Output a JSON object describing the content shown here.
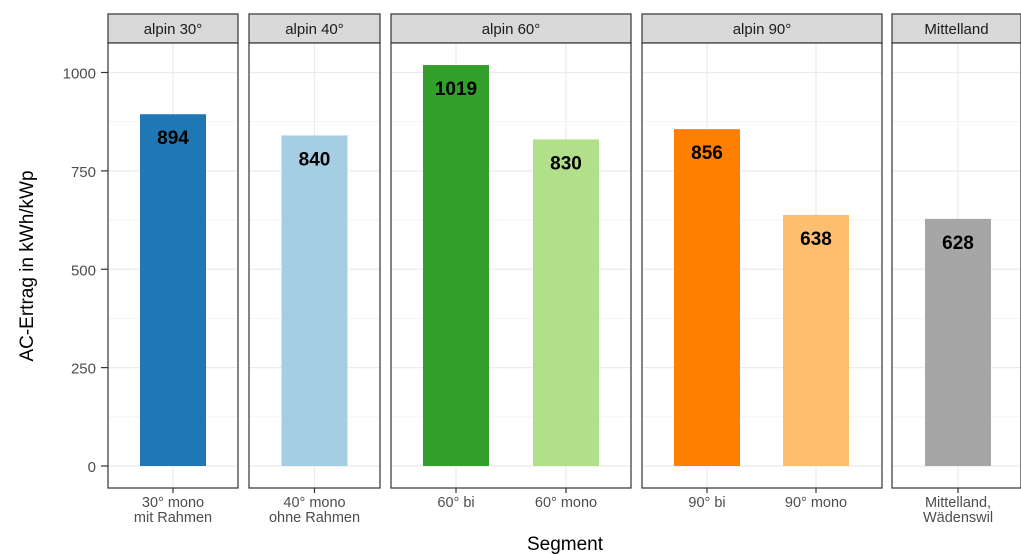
{
  "chart_data": {
    "type": "bar",
    "xlabel": "Segment",
    "ylabel": "AC-Ertrag in kWh/kWp",
    "ylim": [
      0,
      1100
    ],
    "yticks": [
      0,
      250,
      500,
      750,
      1000
    ],
    "grid": true,
    "facets": [
      {
        "title": "alpin 30°",
        "bars": [
          {
            "category": [
              "30° mono",
              "mit Rahmen"
            ],
            "value": 894,
            "label": "894",
            "color": "#1F78B4"
          }
        ]
      },
      {
        "title": "alpin 40°",
        "bars": [
          {
            "category": [
              "40° mono",
              "ohne Rahmen"
            ],
            "value": 840,
            "label": "840",
            "color": "#A6CEE3"
          }
        ]
      },
      {
        "title": "alpin 60°",
        "bars": [
          {
            "category": [
              "60° bi"
            ],
            "value": 1019,
            "label": "1019",
            "color": "#33A02C"
          },
          {
            "category": [
              "60° mono"
            ],
            "value": 830,
            "label": "830",
            "color": "#B2DF8A"
          }
        ]
      },
      {
        "title": "alpin 90°",
        "bars": [
          {
            "category": [
              "90° bi"
            ],
            "value": 856,
            "label": "856",
            "color": "#FF7F00"
          },
          {
            "category": [
              "90° mono"
            ],
            "value": 638,
            "label": "638",
            "color": "#FDBF6F"
          }
        ]
      },
      {
        "title": "Mittelland",
        "bars": [
          {
            "category": [
              "Mittelland,",
              "Wädenswil"
            ],
            "value": 628,
            "label": "628",
            "color": "#A6A6A6"
          }
        ]
      }
    ]
  }
}
